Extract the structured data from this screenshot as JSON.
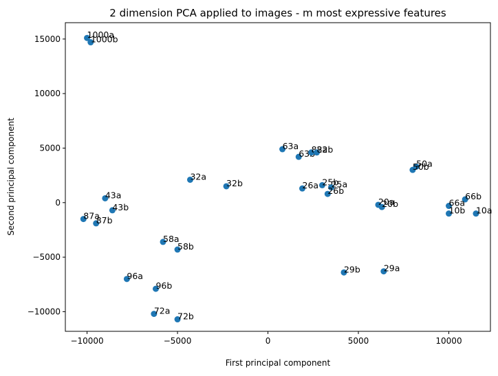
{
  "chart_data": {
    "type": "scatter",
    "title": "2 dimension PCA applied to images - m most expressive features",
    "xlabel": "First principal component",
    "ylabel": "Second principal component",
    "xlim": [
      -11200,
      12300
    ],
    "ylim": [
      -11800,
      16500
    ],
    "xticks": [
      -10000,
      -5000,
      0,
      5000,
      10000
    ],
    "yticks": [
      -10000,
      -5000,
      0,
      5000,
      10000,
      15000
    ],
    "xtick_labels": [
      "−10000",
      "−5000",
      "0",
      "5000",
      "10000"
    ],
    "ytick_labels": [
      "−10000",
      "−5000",
      "0",
      "5000",
      "10000",
      "15000"
    ],
    "grid": false,
    "marker_color": "#1f77b4",
    "points": [
      {
        "label": "1000a",
        "x": -10000,
        "y": 15100
      },
      {
        "label": "1000b",
        "x": -9800,
        "y": 14700
      },
      {
        "label": "63a",
        "x": 800,
        "y": 4900
      },
      {
        "label": "63b",
        "x": 1700,
        "y": 4200
      },
      {
        "label": "82a",
        "x": 2400,
        "y": 4600
      },
      {
        "label": "82b",
        "x": 2700,
        "y": 4600
      },
      {
        "label": "50a",
        "x": 8200,
        "y": 3300
      },
      {
        "label": "50b",
        "x": 8000,
        "y": 3000
      },
      {
        "label": "32a",
        "x": -4300,
        "y": 2100
      },
      {
        "label": "32b",
        "x": -2300,
        "y": 1500
      },
      {
        "label": "26a",
        "x": 1900,
        "y": 1300
      },
      {
        "label": "25b",
        "x": 3000,
        "y": 1600
      },
      {
        "label": "25a",
        "x": 3500,
        "y": 1400
      },
      {
        "label": "26b",
        "x": 3300,
        "y": 800
      },
      {
        "label": "43a",
        "x": -9000,
        "y": 400
      },
      {
        "label": "43b",
        "x": -8600,
        "y": -700
      },
      {
        "label": "87a",
        "x": -10200,
        "y": -1500
      },
      {
        "label": "87b",
        "x": -9500,
        "y": -1900
      },
      {
        "label": "20a",
        "x": 6100,
        "y": -200
      },
      {
        "label": "20b",
        "x": 6300,
        "y": -400
      },
      {
        "label": "66b",
        "x": 10900,
        "y": 300
      },
      {
        "label": "66a",
        "x": 10000,
        "y": -300
      },
      {
        "label": "10b",
        "x": 10000,
        "y": -1000
      },
      {
        "label": "10a",
        "x": 11500,
        "y": -1000
      },
      {
        "label": "58a",
        "x": -5800,
        "y": -3600
      },
      {
        "label": "58b",
        "x": -5000,
        "y": -4300
      },
      {
        "label": "29b",
        "x": 4200,
        "y": -6400
      },
      {
        "label": "29a",
        "x": 6400,
        "y": -6300
      },
      {
        "label": "96a",
        "x": -7800,
        "y": -7000
      },
      {
        "label": "96b",
        "x": -6200,
        "y": -7900
      },
      {
        "label": "72a",
        "x": -6300,
        "y": -10200
      },
      {
        "label": "72b",
        "x": -5000,
        "y": -10700
      }
    ]
  }
}
